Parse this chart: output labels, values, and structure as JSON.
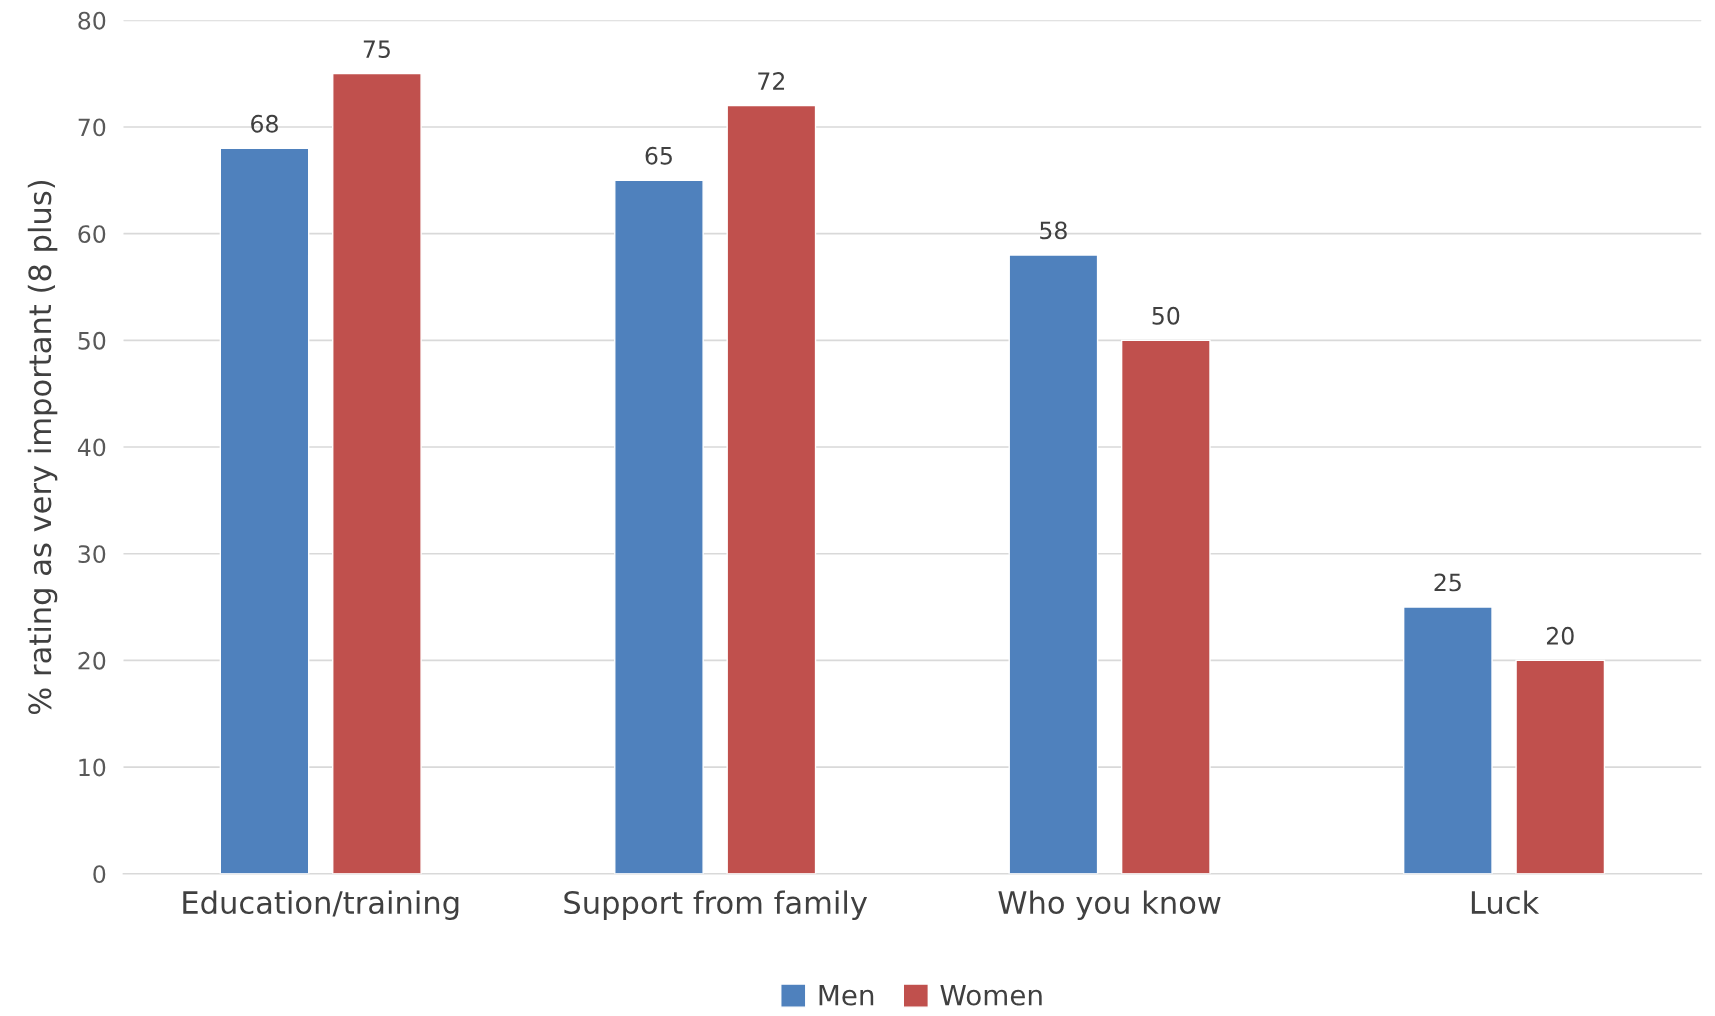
{
  "chart_data": {
    "type": "bar",
    "ylabel": "% rating as very important (8 plus)",
    "categories": [
      "Education/training",
      "Support from family",
      "Who you know",
      "Luck"
    ],
    "series": [
      {
        "name": "Men",
        "color": "#4f81bd",
        "values": [
          68,
          65,
          58,
          25
        ]
      },
      {
        "name": "Women",
        "color": "#c0504d",
        "values": [
          75,
          72,
          50,
          20
        ]
      }
    ],
    "ylim": [
      0,
      80
    ],
    "yticks": [
      0,
      10,
      20,
      30,
      40,
      50,
      60,
      70,
      80
    ],
    "grid": "y",
    "legend": "bottom",
    "data_labels": true
  }
}
